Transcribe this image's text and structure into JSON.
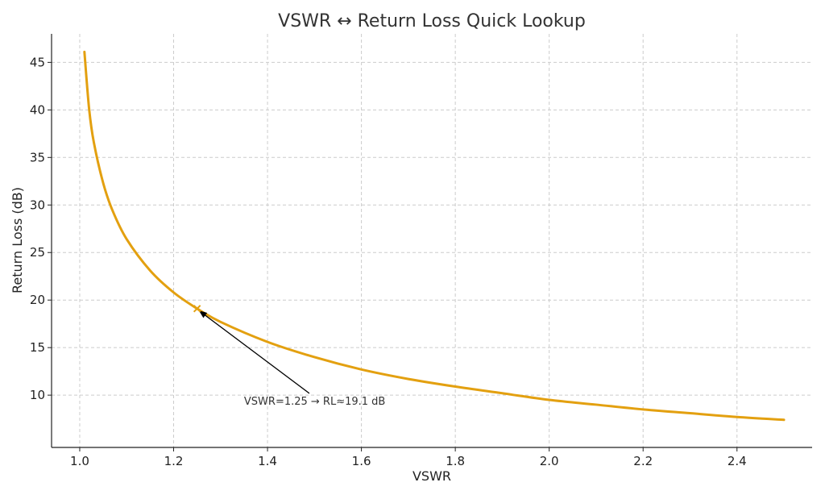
{
  "chart_data": {
    "type": "line",
    "title": "VSWR ↔ Return Loss Quick Lookup",
    "xlabel": "VSWR",
    "ylabel": "Return Loss (dB)",
    "xlim": [
      0.94,
      2.56
    ],
    "ylim": [
      4.5,
      48
    ],
    "xticks": [
      1.0,
      1.2,
      1.4,
      1.6,
      1.8,
      2.0,
      2.2,
      2.4
    ],
    "xtick_labels": [
      "1.0",
      "1.2",
      "1.4",
      "1.6",
      "1.8",
      "2.0",
      "2.2",
      "2.4"
    ],
    "yticks": [
      10,
      15,
      20,
      25,
      30,
      35,
      40,
      45
    ],
    "ytick_labels": [
      "10",
      "15",
      "20",
      "25",
      "30",
      "35",
      "40",
      "45"
    ],
    "grid": true,
    "series": [
      {
        "color": "#E3A010",
        "x": [
          1.01,
          1.02,
          1.03,
          1.05,
          1.07,
          1.1,
          1.15,
          1.2,
          1.25,
          1.3,
          1.4,
          1.5,
          1.6,
          1.7,
          1.8,
          1.9,
          2.0,
          2.1,
          2.2,
          2.3,
          2.4,
          2.5
        ],
        "y": [
          46.1,
          40.1,
          36.6,
          32.3,
          29.4,
          26.4,
          23.1,
          20.8,
          19.1,
          17.7,
          15.6,
          14.0,
          12.7,
          11.7,
          10.9,
          10.2,
          9.5,
          9.0,
          8.5,
          8.1,
          7.7,
          7.4
        ]
      }
    ],
    "annotations": [
      {
        "text": "VSWR=1.25 → RL≈19.1 dB",
        "point": [
          1.25,
          19.1
        ],
        "text_position": [
          1.35,
          9.0
        ],
        "marker": "x",
        "marker_color": "#E3A010",
        "arrow_color": "#000000"
      }
    ]
  }
}
